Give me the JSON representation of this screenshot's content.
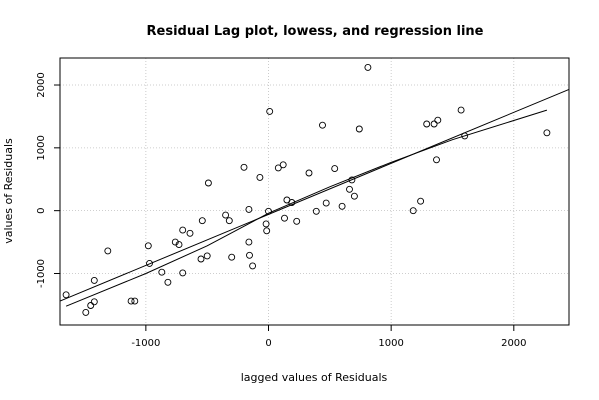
{
  "chart_data": {
    "type": "scatter",
    "title": "Residual Lag plot, lowess, and regression line",
    "xlabel": "lagged values of Residuals",
    "ylabel": "values of Residuals",
    "xlim": [
      -1700,
      2450
    ],
    "ylim": [
      -1820,
      2430
    ],
    "xticks": [
      -1000,
      0,
      1000,
      2000
    ],
    "yticks": [
      -1000,
      0,
      1000,
      2000
    ],
    "xtick_labels": [
      "-1000",
      "0",
      "1000",
      "2000"
    ],
    "ytick_labels": [
      "-1000",
      "0",
      "1000",
      "2000"
    ],
    "grid": true,
    "points": [
      {
        "x": -1650,
        "y": -1340
      },
      {
        "x": -1490,
        "y": -1620
      },
      {
        "x": -1450,
        "y": -1510
      },
      {
        "x": -1420,
        "y": -1450
      },
      {
        "x": -1420,
        "y": -1110
      },
      {
        "x": -1310,
        "y": -640
      },
      {
        "x": -1120,
        "y": -1440
      },
      {
        "x": -1090,
        "y": -1440
      },
      {
        "x": -980,
        "y": -560
      },
      {
        "x": -970,
        "y": -840
      },
      {
        "x": -870,
        "y": -980
      },
      {
        "x": -820,
        "y": -1140
      },
      {
        "x": -760,
        "y": -500
      },
      {
        "x": -730,
        "y": -540
      },
      {
        "x": -700,
        "y": -310
      },
      {
        "x": -700,
        "y": -990
      },
      {
        "x": -640,
        "y": -360
      },
      {
        "x": -550,
        "y": -770
      },
      {
        "x": -540,
        "y": -160
      },
      {
        "x": -500,
        "y": -720
      },
      {
        "x": -490,
        "y": 440
      },
      {
        "x": -350,
        "y": -70
      },
      {
        "x": -320,
        "y": -160
      },
      {
        "x": -300,
        "y": -740
      },
      {
        "x": -200,
        "y": 690
      },
      {
        "x": -160,
        "y": 20
      },
      {
        "x": -160,
        "y": -500
      },
      {
        "x": -155,
        "y": -710
      },
      {
        "x": -130,
        "y": -880
      },
      {
        "x": -70,
        "y": 530
      },
      {
        "x": -20,
        "y": -210
      },
      {
        "x": -15,
        "y": -320
      },
      {
        "x": 0,
        "y": -10
      },
      {
        "x": 10,
        "y": 1580
      },
      {
        "x": 80,
        "y": 680
      },
      {
        "x": 120,
        "y": 730
      },
      {
        "x": 130,
        "y": -120
      },
      {
        "x": 150,
        "y": 170
      },
      {
        "x": 190,
        "y": 130
      },
      {
        "x": 230,
        "y": -170
      },
      {
        "x": 330,
        "y": 600
      },
      {
        "x": 390,
        "y": -10
      },
      {
        "x": 440,
        "y": 1360
      },
      {
        "x": 470,
        "y": 120
      },
      {
        "x": 540,
        "y": 670
      },
      {
        "x": 600,
        "y": 70
      },
      {
        "x": 660,
        "y": 340
      },
      {
        "x": 680,
        "y": 490
      },
      {
        "x": 700,
        "y": 230
      },
      {
        "x": 740,
        "y": 1300
      },
      {
        "x": 810,
        "y": 2280
      },
      {
        "x": 1180,
        "y": 0
      },
      {
        "x": 1240,
        "y": 150
      },
      {
        "x": 1290,
        "y": 1380
      },
      {
        "x": 1350,
        "y": 1380
      },
      {
        "x": 1370,
        "y": 810
      },
      {
        "x": 1380,
        "y": 1440
      },
      {
        "x": 1570,
        "y": 1600
      },
      {
        "x": 1600,
        "y": 1190
      },
      {
        "x": 2270,
        "y": 1240
      }
    ],
    "series": [
      {
        "type": "lowess",
        "x": [
          -1650,
          -1000,
          -500,
          0,
          500,
          1000,
          1500,
          2270
        ],
        "y": [
          -1520,
          -1000,
          -560,
          -40,
          380,
          770,
          1130,
          1600
        ]
      },
      {
        "type": "regression",
        "x": [
          -1700,
          2450
        ],
        "y": [
          -1440,
          1930
        ]
      }
    ]
  }
}
